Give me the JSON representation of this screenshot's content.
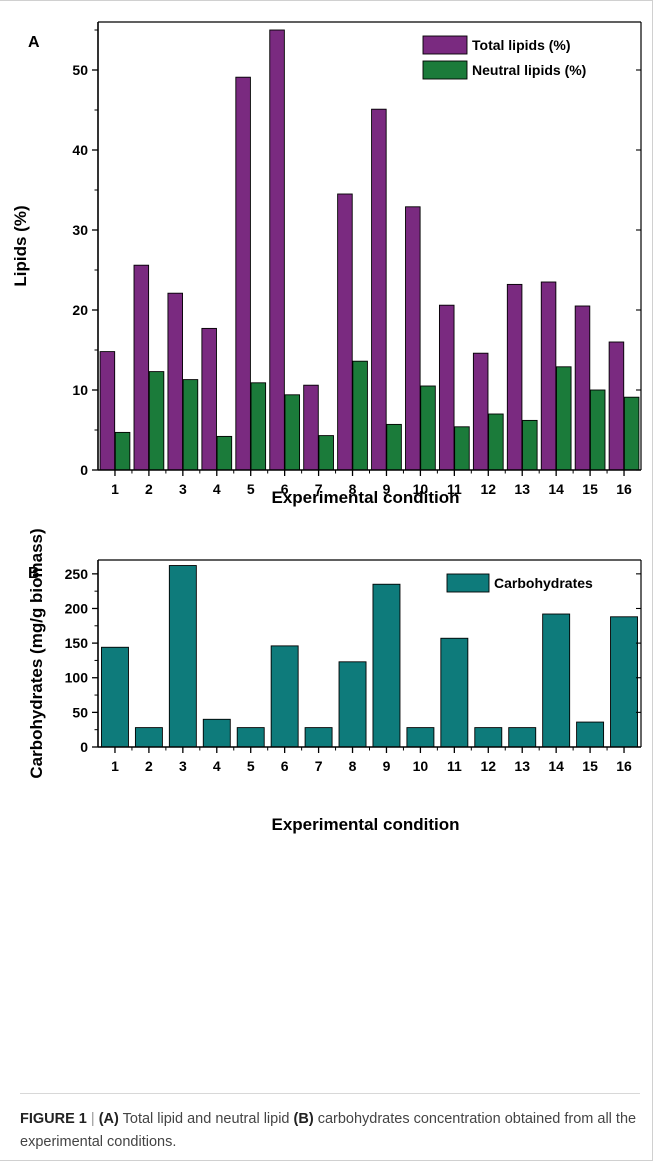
{
  "chart_data": [
    {
      "type": "bar",
      "panel": "A",
      "xlabel": "Experimental condition",
      "ylabel": "Lipids (%)",
      "ylim": [
        0,
        56
      ],
      "yticks": [
        0,
        10,
        20,
        30,
        40,
        50
      ],
      "categories": [
        "1",
        "2",
        "3",
        "4",
        "5",
        "6",
        "7",
        "8",
        "9",
        "10",
        "11",
        "12",
        "13",
        "14",
        "15",
        "16"
      ],
      "legend_position": "top-right",
      "grid": false,
      "series": [
        {
          "name": "Total lipids (%)",
          "color": "#7a2a80",
          "values": [
            14.8,
            25.6,
            22.1,
            17.7,
            49.1,
            55.0,
            10.6,
            34.5,
            45.1,
            32.9,
            20.6,
            14.6,
            23.2,
            23.5,
            20.5,
            16.0
          ]
        },
        {
          "name": "Neutral lipids (%)",
          "color": "#1b7b3a",
          "values": [
            4.7,
            12.3,
            11.3,
            4.2,
            10.9,
            9.4,
            4.3,
            13.6,
            5.7,
            10.5,
            5.4,
            7.0,
            6.2,
            12.9,
            10.0,
            9.1
          ]
        }
      ]
    },
    {
      "type": "bar",
      "panel": "B",
      "xlabel": "Experimental condition",
      "ylabel": "Carbohydrates (mg/g biomass)",
      "ylim": [
        0,
        270
      ],
      "yticks": [
        0,
        50,
        100,
        150,
        200,
        250
      ],
      "categories": [
        "1",
        "2",
        "3",
        "4",
        "5",
        "6",
        "7",
        "8",
        "9",
        "10",
        "11",
        "12",
        "13",
        "14",
        "15",
        "16"
      ],
      "legend_position": "top-right",
      "grid": false,
      "series": [
        {
          "name": "Carbohydrates",
          "color": "#0e7b7b",
          "values": [
            144,
            28,
            262,
            40,
            28,
            146,
            28,
            123,
            235,
            28,
            157,
            28,
            28,
            192,
            36,
            188
          ]
        }
      ]
    }
  ],
  "caption": {
    "figure_label": "FIGURE 1",
    "separator": "|",
    "part_a_label": "(A)",
    "text_a": "Total lipid and neutral lipid",
    "part_b_label": "(B)",
    "text_b": "carbohydrates concentration obtained from all the experimental conditions."
  }
}
